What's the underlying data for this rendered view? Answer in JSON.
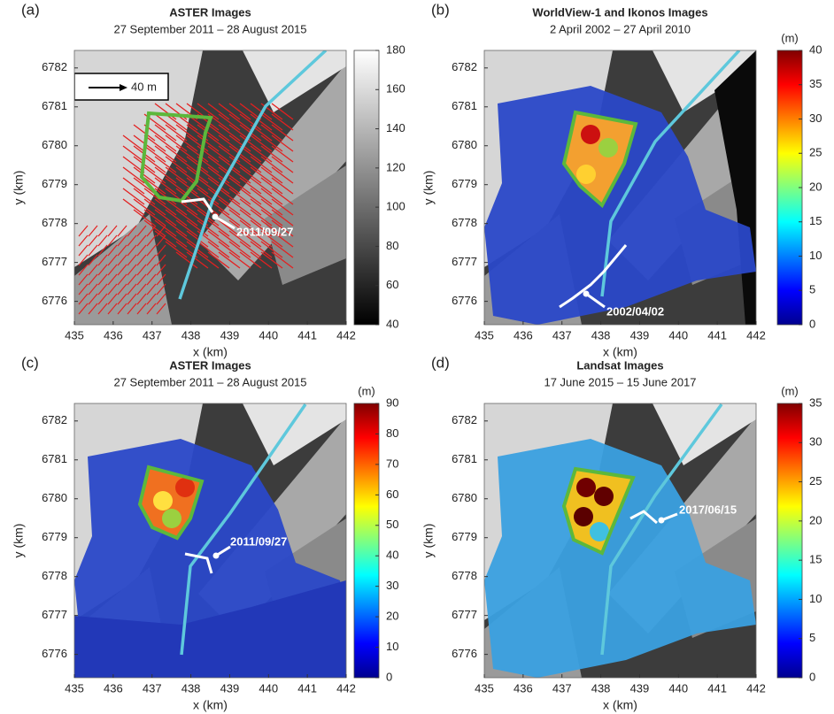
{
  "chart_data": [
    {
      "type": "map",
      "panel_label": "(a)",
      "title": "ASTER Images",
      "subtitle": "27 September 2011 – 28 August 2015",
      "xlabel": "x (km)",
      "ylabel": "y (km)",
      "xlim": [
        435,
        442
      ],
      "ylim": [
        6775.4,
        6782.45
      ],
      "xticks": [
        435,
        436,
        437,
        438,
        439,
        440,
        441,
        442
      ],
      "yticks": [
        6776,
        6777,
        6778,
        6779,
        6780,
        6781,
        6782
      ],
      "colormap": "gray",
      "clim": [
        40,
        180
      ],
      "cticks": [
        40,
        60,
        80,
        100,
        120,
        140,
        160,
        180
      ],
      "annotations": [
        "2011/09/27"
      ],
      "scale_label": "40 m"
    },
    {
      "type": "map",
      "panel_label": "(b)",
      "title": "WorldView-1 and Ikonos Images",
      "subtitle": "2 April 2002 – 27 April 2010",
      "xlabel": "x (km)",
      "ylabel": "y (km)",
      "xlim": [
        435,
        442
      ],
      "ylim": [
        6775.4,
        6782.45
      ],
      "xticks": [
        435,
        436,
        437,
        438,
        439,
        440,
        441,
        442
      ],
      "yticks": [
        6776,
        6777,
        6778,
        6779,
        6780,
        6781,
        6782
      ],
      "colormap": "jet",
      "clim": [
        0,
        40
      ],
      "cticks": [
        0,
        5,
        10,
        15,
        20,
        25,
        30,
        35,
        40
      ],
      "clabel": "(m)",
      "annotations": [
        "2002/04/02"
      ]
    },
    {
      "type": "map",
      "panel_label": "(c)",
      "title": "ASTER Images",
      "subtitle": "27 September 2011 – 28 August 2015",
      "xlabel": "x (km)",
      "ylabel": "y (km)",
      "xlim": [
        435,
        442
      ],
      "ylim": [
        6775.4,
        6782.45
      ],
      "xticks": [
        435,
        436,
        437,
        438,
        439,
        440,
        441,
        442
      ],
      "yticks": [
        6776,
        6777,
        6778,
        6779,
        6780,
        6781,
        6782
      ],
      "colormap": "jet",
      "clim": [
        0,
        90
      ],
      "cticks": [
        0,
        10,
        20,
        30,
        40,
        50,
        60,
        70,
        80,
        90
      ],
      "clabel": "(m)",
      "annotations": [
        "2011/09/27"
      ]
    },
    {
      "type": "map",
      "panel_label": "(d)",
      "title": "Landsat Images",
      "subtitle": "17 June 2015 – 15 June 2017",
      "xlabel": "x (km)",
      "ylabel": "y (km)",
      "xlim": [
        435,
        442
      ],
      "ylim": [
        6775.4,
        6782.45
      ],
      "xticks": [
        435,
        436,
        437,
        438,
        439,
        440,
        441,
        442
      ],
      "yticks": [
        6776,
        6777,
        6778,
        6779,
        6780,
        6781,
        6782
      ],
      "colormap": "jet",
      "clim": [
        0,
        35
      ],
      "cticks": [
        0,
        5,
        10,
        15,
        20,
        25,
        30,
        35
      ],
      "clabel": "(m)",
      "annotations": [
        "2017/06/15"
      ]
    }
  ]
}
